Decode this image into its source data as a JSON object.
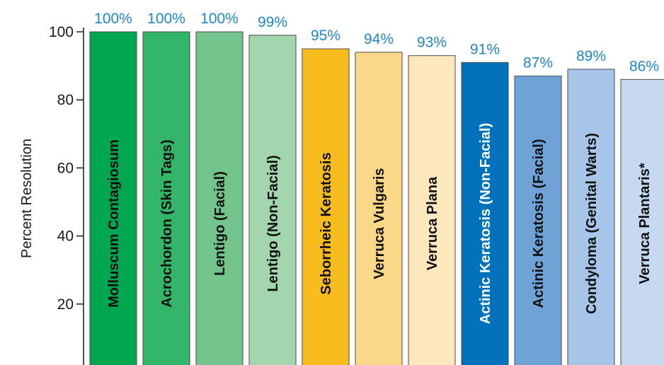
{
  "chart_data": {
    "type": "bar",
    "title": "",
    "xlabel": "",
    "ylabel": "Percent Resolution",
    "ylim": [
      0,
      100
    ],
    "yticks": [
      0,
      20,
      40,
      60,
      80,
      100
    ],
    "grid": false,
    "categories": [
      "Molluscum Contagiosum",
      "Acrochordon (Skin Tags)",
      "Lentigo (Facial)",
      "Lentigo (Non-Facial)",
      "Seborrheic Keratosis",
      "Verruca Vulgaris",
      "Verruca Plana",
      "Actinic Keratosis (Non-Facial)",
      "Actinic Keratosis (Facial)",
      "Condyloma (Genital Warts)",
      "Verruca Plantaris*"
    ],
    "values": [
      100,
      100,
      100,
      99,
      95,
      94,
      93,
      91,
      87,
      89,
      86
    ],
    "value_labels": [
      "100%",
      "100%",
      "100%",
      "99%",
      "95%",
      "94%",
      "93%",
      "91%",
      "87%",
      "89%",
      "86%"
    ],
    "colors": [
      "#00a650",
      "#33b56a",
      "#72c48c",
      "#a3d6ae",
      "#f7bd1f",
      "#fbd888",
      "#fde8bd",
      "#0072bc",
      "#6fa3d8",
      "#a7c5e8",
      "#c6d9f1"
    ],
    "label_colors": [
      "#111111",
      "#111111",
      "#111111",
      "#111111",
      "#111111",
      "#111111",
      "#111111",
      "#ffffff",
      "#111111",
      "#111111",
      "#111111"
    ]
  }
}
